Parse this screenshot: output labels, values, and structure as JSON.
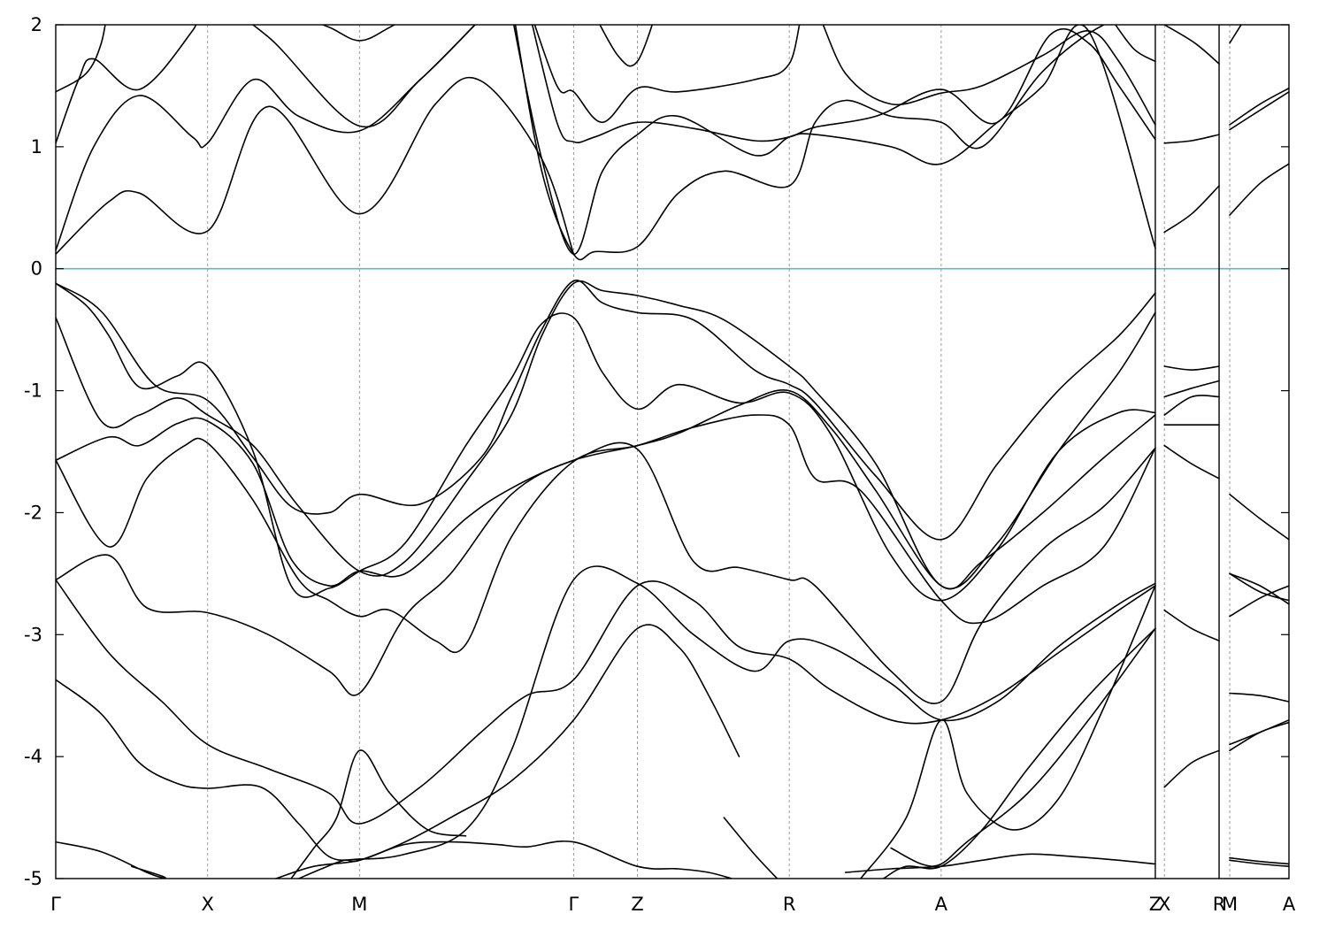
{
  "chart_data": {
    "type": "line",
    "title": "",
    "xlabel": "",
    "ylabel": "",
    "ylim": [
      -5,
      2
    ],
    "yticks": [
      2,
      1,
      0,
      -1,
      -2,
      -3,
      -4,
      -5
    ],
    "ytick_labels": [
      "2",
      "1",
      "0",
      "-1",
      "-2",
      "-3",
      "-4",
      "-5"
    ],
    "kpath": [
      {
        "label": "Γ",
        "x": 0.0
      },
      {
        "label": "X",
        "x": 1.0
      },
      {
        "label": "M",
        "x": 2.0
      },
      {
        "label": "Γ",
        "x": 3.41
      },
      {
        "label": "Z",
        "x": 3.83
      },
      {
        "label": "R",
        "x": 4.83
      },
      {
        "label": "A",
        "x": 5.83
      },
      {
        "label": "Z",
        "x": 7.24
      },
      {
        "label": "X",
        "x": 7.3
      },
      {
        "label": "R",
        "x": 7.66
      },
      {
        "label": "M",
        "x": 7.73
      },
      {
        "label": "A",
        "x": 8.12
      }
    ],
    "segment_breaks": [
      7.24,
      7.66
    ],
    "fermi_level": 0,
    "fermi_color": "#5cb8cc",
    "band_color": "#000000",
    "grid": "dashed vertical lines at high-symmetry points",
    "series": [
      {
        "x": [
          0,
          0.35,
          0.55,
          1.0,
          1.4,
          2.0,
          2.5,
          2.8,
          3.2,
          3.41
        ],
        "y": [
          0.12,
          0.55,
          0.62,
          0.31,
          1.33,
          0.45,
          1.35,
          1.54,
          0.9,
          0.12
        ]
      },
      {
        "x": [
          0,
          0.25,
          0.55,
          0.9,
          1.0,
          1.3,
          1.6,
          2.0,
          2.4,
          2.8,
          3.0
        ],
        "y": [
          0.15,
          1.0,
          1.42,
          1.08,
          1.03,
          1.55,
          1.25,
          1.13,
          1.55,
          2.05,
          2.3
        ]
      },
      {
        "x": [
          0,
          0.15,
          0.25,
          0.55,
          0.9,
          1.0,
          1.4,
          2.0,
          2.4,
          2.8,
          3.0
        ],
        "y": [
          1.03,
          1.55,
          1.72,
          1.47,
          1.95,
          2.2,
          1.9,
          1.17,
          1.55,
          2.05,
          2.3
        ]
      },
      {
        "x": [
          0,
          0.2,
          0.3,
          0.35
        ],
        "y": [
          1.45,
          1.6,
          1.85,
          2.2
        ]
      },
      {
        "x": [
          1.55,
          1.8,
          2.0,
          2.2,
          2.5
        ],
        "y": [
          2.1,
          1.98,
          1.87,
          1.98,
          2.2
        ]
      },
      {
        "x": [
          3.0,
          3.2,
          3.41,
          3.55,
          3.83,
          4.1,
          4.4,
          4.83,
          5.0,
          5.2,
          5.5,
          5.83,
          6.1,
          6.5,
          6.9,
          7.24
        ],
        "y": [
          2.2,
          0.8,
          0.12,
          0.14,
          0.18,
          0.62,
          0.8,
          0.68,
          1.2,
          1.38,
          1.25,
          1.2,
          1.0,
          1.62,
          2.0,
          2.1
        ]
      },
      {
        "x": [
          3.0,
          3.2,
          3.41,
          3.6,
          3.83,
          4.1,
          4.6,
          4.83,
          5.0,
          5.5,
          5.83,
          6.2,
          6.5,
          6.8,
          7.24
        ],
        "y": [
          2.1,
          0.9,
          0.12,
          0.8,
          1.1,
          1.25,
          0.93,
          1.08,
          1.1,
          1.0,
          0.86,
          1.2,
          1.5,
          1.95,
          0.17
        ]
      },
      {
        "x": [
          3.1,
          3.3,
          3.41,
          3.55,
          3.83,
          4.2,
          4.6,
          4.83,
          5.0,
          5.4,
          5.83,
          6.2,
          6.55,
          6.8,
          7.0,
          7.24
        ],
        "y": [
          2.2,
          1.2,
          1.04,
          1.08,
          1.2,
          1.15,
          1.05,
          1.08,
          1.16,
          1.25,
          1.47,
          1.2,
          1.92,
          1.85,
          1.5,
          1.06
        ]
      },
      {
        "x": [
          3.1,
          3.3,
          3.41,
          3.6,
          3.83,
          4.1,
          4.6,
          4.83,
          4.96,
          5.2,
          5.5,
          5.83,
          6.1,
          6.5,
          6.8,
          7.0,
          7.24
        ],
        "y": [
          2.2,
          1.5,
          1.45,
          1.2,
          1.48,
          1.45,
          1.55,
          1.68,
          2.2,
          1.6,
          1.35,
          1.44,
          1.5,
          1.75,
          1.95,
          1.7,
          1.18
        ]
      },
      {
        "x": [
          3.5,
          3.7,
          3.83,
          3.98
        ],
        "y": [
          2.2,
          1.75,
          1.7,
          2.2
        ]
      },
      {
        "x": [
          6.95,
          7.1,
          7.24
        ],
        "y": [
          2.05,
          1.8,
          1.7
        ]
      },
      {
        "x": [
          7.3,
          7.48,
          7.66
        ],
        "y": [
          0.3,
          0.45,
          0.68
        ]
      },
      {
        "x": [
          7.3,
          7.48,
          7.66
        ],
        "y": [
          1.03,
          1.05,
          1.1
        ]
      },
      {
        "x": [
          7.3,
          7.5,
          7.66
        ],
        "y": [
          2.0,
          1.85,
          1.68
        ]
      },
      {
        "x": [
          7.73,
          7.93,
          8.12
        ],
        "y": [
          0.44,
          0.7,
          0.86
        ]
      },
      {
        "x": [
          7.73,
          7.93,
          8.12
        ],
        "y": [
          1.14,
          1.3,
          1.45
        ]
      },
      {
        "x": [
          7.73,
          7.93,
          8.12
        ],
        "y": [
          1.18,
          1.35,
          1.48
        ]
      },
      {
        "x": [
          7.73,
          7.83
        ],
        "y": [
          1.85,
          2.05
        ]
      },
      {
        "x": [
          0,
          0.3,
          0.65,
          1.0,
          1.3,
          1.55,
          1.8,
          2.0,
          2.4,
          2.8,
          3.0,
          3.2,
          3.41,
          3.6,
          3.83,
          4.2,
          4.6,
          4.83,
          5.0,
          5.4,
          5.83,
          6.2,
          6.6,
          7.0,
          7.24
        ],
        "y": [
          -0.12,
          -0.35,
          -0.95,
          -1.08,
          -1.55,
          -1.95,
          -2.0,
          -1.85,
          -1.93,
          -1.55,
          -1.05,
          -0.5,
          -0.1,
          -0.28,
          -0.36,
          -0.42,
          -0.83,
          -0.95,
          -1.1,
          -1.7,
          -2.22,
          -1.6,
          -1.0,
          -0.55,
          -0.2
        ]
      },
      {
        "x": [
          0,
          0.3,
          0.55,
          0.8,
          1.0,
          1.3,
          1.6,
          2.0,
          2.3,
          2.7,
          3.0,
          3.2,
          3.41,
          3.6,
          3.83,
          4.1,
          4.4,
          4.83,
          5.0,
          5.4,
          5.83,
          6.2,
          6.6,
          7.0,
          7.24
        ],
        "y": [
          -0.4,
          -1.25,
          -1.2,
          -1.06,
          -1.2,
          -1.45,
          -1.95,
          -2.48,
          -2.4,
          -1.75,
          -1.2,
          -0.55,
          -0.12,
          -0.18,
          -0.22,
          -0.3,
          -0.42,
          -0.8,
          -1.0,
          -1.6,
          -2.6,
          -2.25,
          -1.5,
          -0.85,
          -0.36
        ]
      },
      {
        "x": [
          0,
          0.2,
          0.35,
          0.55,
          0.8,
          1.0,
          1.3,
          1.55,
          1.8,
          2.0,
          2.3,
          2.7,
          3.0,
          3.2,
          3.41,
          3.6,
          3.83,
          4.1,
          4.5,
          4.83,
          5.1,
          5.5,
          5.83,
          6.2,
          6.6,
          7.0,
          7.24
        ],
        "y": [
          -0.12,
          -0.3,
          -0.55,
          -0.97,
          -0.88,
          -0.8,
          -1.5,
          -2.6,
          -2.62,
          -2.48,
          -2.25,
          -1.45,
          -0.9,
          -0.45,
          -0.4,
          -0.85,
          -1.15,
          -0.95,
          -1.1,
          -1.02,
          -1.35,
          -2.35,
          -2.72,
          -2.3,
          -1.5,
          -1.18,
          -1.18
        ]
      },
      {
        "x": [
          0,
          0.35,
          0.55,
          0.8,
          1.0,
          1.3,
          1.55,
          1.8,
          2.0,
          2.3,
          2.7,
          3.0,
          3.41,
          3.83,
          4.1,
          4.5,
          4.83,
          5.1,
          5.4,
          5.83,
          6.1,
          6.5,
          6.9,
          7.24
        ],
        "y": [
          -1.57,
          -1.38,
          -1.45,
          -1.27,
          -1.25,
          -1.6,
          -2.38,
          -2.6,
          -2.48,
          -2.5,
          -2.05,
          -1.8,
          -1.57,
          -1.45,
          -1.35,
          -1.12,
          -1.0,
          -1.3,
          -1.82,
          -2.6,
          -2.4,
          -2.0,
          -1.55,
          -1.2
        ]
      },
      {
        "x": [
          0,
          0.35,
          0.6,
          0.85,
          1.0,
          1.3,
          1.6,
          1.8,
          2.0,
          2.2,
          2.5,
          2.7,
          3.0,
          3.41,
          3.83,
          4.2,
          4.6,
          4.83,
          5.0,
          5.3,
          5.83,
          6.1,
          6.5,
          6.9,
          7.24
        ],
        "y": [
          -1.57,
          -2.28,
          -1.72,
          -1.45,
          -1.43,
          -1.9,
          -2.55,
          -2.72,
          -2.85,
          -2.8,
          -3.05,
          -3.08,
          -2.2,
          -1.58,
          -1.45,
          -1.3,
          -1.2,
          -1.28,
          -1.72,
          -1.82,
          -2.72,
          -2.9,
          -2.6,
          -2.28,
          -1.47
        ]
      },
      {
        "x": [
          0,
          0.35,
          0.6,
          1.0,
          1.4,
          1.8,
          2.0,
          2.3,
          2.6,
          3.0,
          3.41,
          3.83,
          4.2,
          4.5,
          4.83,
          5.0,
          5.5,
          5.83,
          6.1,
          6.5,
          6.9,
          7.24
        ],
        "y": [
          -2.55,
          -2.35,
          -2.78,
          -2.82,
          -3.0,
          -3.3,
          -3.48,
          -2.85,
          -2.5,
          -1.85,
          -1.57,
          -1.48,
          -2.4,
          -2.45,
          -2.55,
          -2.6,
          -3.3,
          -3.55,
          -2.9,
          -2.3,
          -1.95,
          -1.47
        ]
      },
      {
        "x": [
          0,
          0.35,
          0.7,
          1.0,
          1.4,
          1.8,
          2.0,
          2.4,
          2.8,
          3.1,
          3.41,
          3.83,
          4.2,
          4.5,
          4.83,
          5.1,
          5.5,
          5.83,
          6.2,
          6.6,
          7.0,
          7.24
        ],
        "y": [
          -2.55,
          -3.15,
          -3.55,
          -3.9,
          -4.1,
          -4.3,
          -4.55,
          -4.25,
          -3.8,
          -3.5,
          -3.37,
          -2.6,
          -2.72,
          -3.1,
          -3.2,
          -3.45,
          -3.7,
          -3.7,
          -3.5,
          -3.15,
          -2.8,
          -2.6
        ]
      },
      {
        "x": [
          0,
          0.3,
          0.55,
          0.8,
          1.0,
          1.35,
          1.6,
          1.8,
          2.0,
          2.3,
          2.7,
          3.0,
          3.41,
          3.83,
          4.2,
          4.6,
          4.83,
          5.1,
          5.5,
          5.83,
          6.2,
          6.6,
          7.0,
          7.24
        ],
        "y": [
          -3.37,
          -3.65,
          -4.05,
          -4.22,
          -4.26,
          -4.25,
          -4.55,
          -4.82,
          -4.84,
          -4.8,
          -4.6,
          -3.95,
          -2.55,
          -2.58,
          -3.0,
          -3.3,
          -3.05,
          -3.1,
          -3.4,
          -3.7,
          -3.55,
          -3.1,
          -2.75,
          -2.58
        ]
      },
      {
        "x": [
          0,
          0.3,
          0.6,
          0.72
        ],
        "y": [
          -4.7,
          -4.78,
          -4.95,
          -5.0
        ]
      },
      {
        "x": [
          1.45,
          1.7,
          2.0,
          2.3,
          2.6,
          2.9,
          3.1,
          3.41,
          3.83,
          4.1,
          4.3,
          4.45
        ],
        "y": [
          -5.0,
          -4.9,
          -4.85,
          -4.72,
          -4.7,
          -4.72,
          -4.74,
          -4.7,
          -4.9,
          -4.92,
          -4.95,
          -5.0
        ]
      },
      {
        "x": [
          1.6,
          1.75,
          1.9,
          2.0,
          2.3,
          2.6,
          3.0,
          3.41,
          3.83,
          4.1,
          4.3,
          4.5
        ],
        "y": [
          -5.0,
          -4.92,
          -4.85,
          -4.85,
          -4.7,
          -4.5,
          -4.2,
          -3.7,
          -2.95,
          -3.1,
          -3.5,
          -4.0
        ]
      },
      {
        "x": [
          1.55,
          1.7,
          1.85,
          2.0,
          2.2,
          2.45,
          2.7
        ],
        "y": [
          -5.0,
          -4.75,
          -4.5,
          -3.95,
          -4.3,
          -4.6,
          -4.65
        ]
      },
      {
        "x": [
          0.5,
          0.7,
          0.72
        ],
        "y": [
          -4.9,
          -4.98,
          -5.0
        ]
      },
      {
        "x": [
          4.4,
          4.6,
          4.75
        ],
        "y": [
          -4.5,
          -4.8,
          -5.0
        ]
      },
      {
        "x": [
          5.2,
          5.5,
          5.83,
          6.1,
          6.4,
          6.7,
          7.0,
          7.24
        ],
        "y": [
          -4.95,
          -4.92,
          -4.9,
          -4.85,
          -4.8,
          -4.82,
          -4.85,
          -4.88
        ]
      },
      {
        "x": [
          5.3,
          5.6,
          5.83,
          6.0,
          6.3,
          6.6,
          6.9,
          7.24
        ],
        "y": [
          -5.0,
          -4.5,
          -3.7,
          -4.3,
          -4.6,
          -4.35,
          -3.6,
          -2.6
        ]
      },
      {
        "x": [
          5.45,
          5.6,
          5.83,
          6.1,
          6.4,
          6.8,
          7.24
        ],
        "y": [
          -5.0,
          -4.9,
          -4.9,
          -4.6,
          -4.1,
          -3.5,
          -2.95
        ]
      },
      {
        "x": [
          5.5,
          5.7,
          5.83,
          6.0,
          6.4,
          6.8,
          7.24
        ],
        "y": [
          -4.75,
          -4.88,
          -4.88,
          -4.7,
          -4.3,
          -3.7,
          -2.95
        ]
      },
      {
        "x": [
          7.3,
          7.48,
          7.66
        ],
        "y": [
          -0.8,
          -0.83,
          -0.8
        ]
      },
      {
        "x": [
          7.3,
          7.48,
          7.66
        ],
        "y": [
          -1.05,
          -0.98,
          -0.92
        ]
      },
      {
        "x": [
          7.3,
          7.48,
          7.66
        ],
        "y": [
          -1.2,
          -1.05,
          -1.05
        ]
      },
      {
        "x": [
          7.3,
          7.48,
          7.66
        ],
        "y": [
          -1.28,
          -1.28,
          -1.28
        ]
      },
      {
        "x": [
          7.3,
          7.48,
          7.66
        ],
        "y": [
          -1.45,
          -1.6,
          -1.72
        ]
      },
      {
        "x": [
          7.3,
          7.48,
          7.66
        ],
        "y": [
          -2.8,
          -2.95,
          -3.05
        ]
      },
      {
        "x": [
          7.3,
          7.48,
          7.66
        ],
        "y": [
          -4.25,
          -4.05,
          -3.95
        ]
      },
      {
        "x": [
          7.73,
          7.93,
          8.12
        ],
        "y": [
          -1.85,
          -2.05,
          -2.22
        ]
      },
      {
        "x": [
          7.73,
          7.93,
          8.12
        ],
        "y": [
          -2.5,
          -2.65,
          -2.72
        ]
      },
      {
        "x": [
          7.73,
          7.93,
          8.12
        ],
        "y": [
          -2.85,
          -2.7,
          -2.6
        ]
      },
      {
        "x": [
          7.73,
          7.93,
          8.12
        ],
        "y": [
          -2.5,
          -2.6,
          -2.75
        ]
      },
      {
        "x": [
          7.73,
          7.93,
          8.12
        ],
        "y": [
          -3.48,
          -3.5,
          -3.55
        ]
      },
      {
        "x": [
          7.73,
          7.93,
          8.12
        ],
        "y": [
          -3.9,
          -3.8,
          -3.7
        ]
      },
      {
        "x": [
          7.73,
          7.93,
          8.12
        ],
        "y": [
          -3.95,
          -3.8,
          -3.72
        ]
      },
      {
        "x": [
          7.73,
          7.93,
          8.12
        ],
        "y": [
          -4.85,
          -4.88,
          -4.9
        ]
      },
      {
        "x": [
          7.73,
          7.93,
          8.12
        ],
        "y": [
          -4.83,
          -4.86,
          -4.88
        ]
      }
    ]
  }
}
